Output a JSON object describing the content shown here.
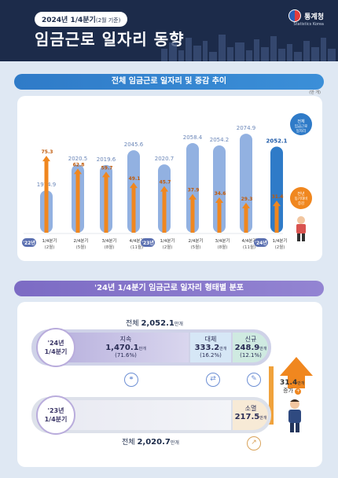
{
  "header": {
    "period_main": "2024년 1/4분기",
    "period_sub": "(2월 기준)",
    "title": "임금근로 일자리 동향",
    "logo_text": "통계청",
    "logo_sub": "Statistics Korea"
  },
  "section1": {
    "title": "전체 임금근로 일자리 및 증감 추이",
    "unit": "(만 개)"
  },
  "section2": {
    "title": "'24년 1/4분기 임금근로 일자리 형태별 분포"
  },
  "chart_data": {
    "type": "bar",
    "title": "전체 임금근로 일자리 및 증감 추이",
    "unit": "(만 개)",
    "years": [
      "'22년",
      "'23년",
      "'24년"
    ],
    "categories": [
      "1/4분기",
      "2/4분기",
      "3/4분기",
      "4/4분기",
      "1/4분기",
      "2/4분기",
      "3/4분기",
      "4/4분기",
      "1/4분기"
    ],
    "months": [
      "(2월)",
      "(5월)",
      "(8월)",
      "(11월)",
      "(2월)",
      "(5월)",
      "(8월)",
      "(11월)",
      "(2월)"
    ],
    "series": [
      {
        "name": "전체 임금근로 일자리",
        "values": [
          1974.9,
          2020.5,
          2019.6,
          2045.6,
          2020.7,
          2058.4,
          2054.2,
          2074.9,
          2052.1
        ]
      },
      {
        "name": "전년 동기대비 증감",
        "values": [
          75.3,
          62.8,
          59.7,
          49.1,
          45.7,
          37.9,
          34.6,
          29.3,
          31.4
        ]
      }
    ],
    "legend": [
      "전체 임금근로 일자리",
      "전년 동기대비 증감"
    ],
    "highlight_color": "#2f7bc8",
    "bar_color": "#7fa3dc",
    "arrow_color": "#f0871f"
  },
  "distribution": {
    "total_2024_label": "전체",
    "total_2024": "2,052.1",
    "total_2023_label": "전체",
    "total_2023": "2,020.7",
    "unit": "만개",
    "row_2024": "'24년\n1/4분기",
    "row_2023": "'23년\n1/4분기",
    "segments": [
      {
        "name": "지속",
        "value": "1,470.1",
        "pct": "(71.6%)",
        "unit": "만개"
      },
      {
        "name": "대체",
        "value": "333.2",
        "pct": "(16.2%)",
        "unit": "만개"
      },
      {
        "name": "신규",
        "value": "248.9",
        "pct": "(12.1%)",
        "unit": "만개"
      }
    ],
    "extinct": {
      "name": "소멸",
      "value": "217.5",
      "unit": "만개"
    },
    "increase_value": "31.4",
    "increase_unit": "만개",
    "increase_label": "증가"
  }
}
